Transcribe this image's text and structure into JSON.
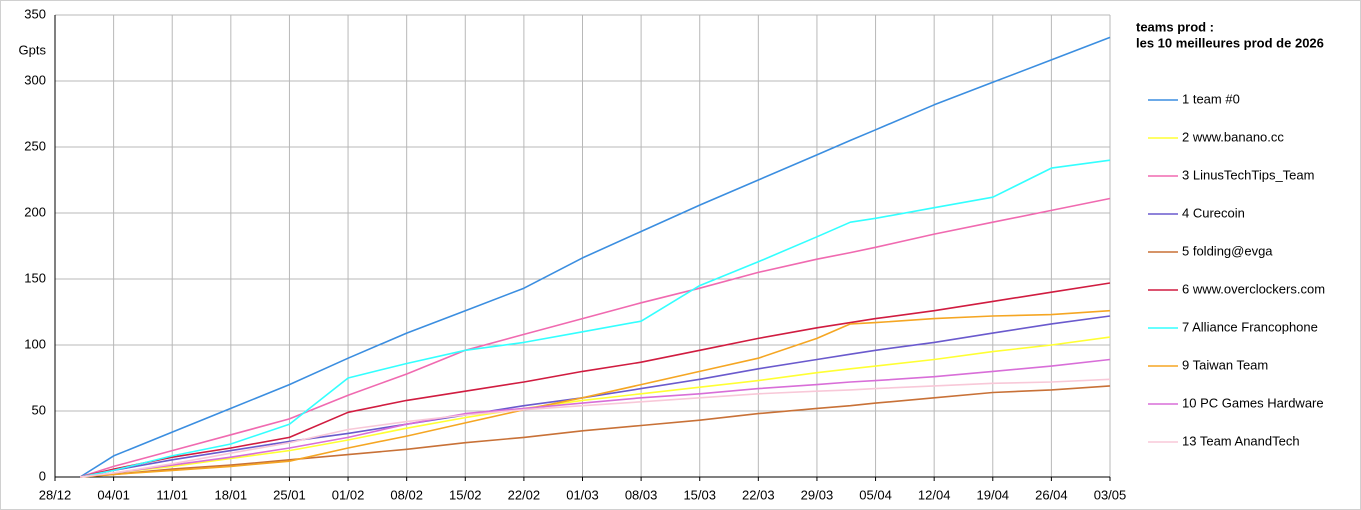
{
  "chart_data": {
    "type": "line",
    "title": "teams prod :",
    "subtitle": "les 10 meilleures prod de 2026",
    "y_label": "Gpts",
    "x": [
      3,
      7,
      14,
      21,
      28,
      35,
      42,
      49,
      56,
      63,
      70,
      77,
      84,
      91,
      95,
      98,
      105,
      112,
      119,
      126
    ],
    "xlim": [
      0,
      126
    ],
    "xticks": [
      {
        "value": 0,
        "label": "28/12"
      },
      {
        "value": 7,
        "label": "04/01"
      },
      {
        "value": 14,
        "label": "11/01"
      },
      {
        "value": 21,
        "label": "18/01"
      },
      {
        "value": 28,
        "label": "25/01"
      },
      {
        "value": 35,
        "label": "01/02"
      },
      {
        "value": 42,
        "label": "08/02"
      },
      {
        "value": 49,
        "label": "15/02"
      },
      {
        "value": 56,
        "label": "22/02"
      },
      {
        "value": 63,
        "label": "01/03"
      },
      {
        "value": 70,
        "label": "08/03"
      },
      {
        "value": 77,
        "label": "15/03"
      },
      {
        "value": 84,
        "label": "22/03"
      },
      {
        "value": 91,
        "label": "29/03"
      },
      {
        "value": 98,
        "label": "05/04"
      },
      {
        "value": 105,
        "label": "12/04"
      },
      {
        "value": 112,
        "label": "19/04"
      },
      {
        "value": 119,
        "label": "26/04"
      },
      {
        "value": 126,
        "label": "03/05"
      }
    ],
    "ylim": [
      0,
      350
    ],
    "yticks": [
      0,
      50,
      100,
      150,
      200,
      250,
      300,
      350
    ],
    "grid": true,
    "legend": "right",
    "series": [
      {
        "name": "1 team #0",
        "color": "#3b8ee0",
        "values": [
          0,
          16,
          34,
          52,
          70,
          90,
          109,
          126,
          143,
          166,
          186,
          206,
          225,
          244,
          255,
          263,
          282,
          299,
          316,
          333
        ]
      },
      {
        "name": "2 www.banano.cc",
        "color": "#ffff33",
        "values": [
          0,
          3,
          8,
          14,
          20,
          28,
          37,
          45,
          52,
          58,
          63,
          68,
          73,
          79,
          82,
          84,
          89,
          95,
          100,
          106
        ]
      },
      {
        "name": "3 LinusTechTips_Team",
        "color": "#f06ab0",
        "values": [
          0,
          8,
          20,
          32,
          44,
          62,
          78,
          96,
          108,
          120,
          132,
          143,
          155,
          165,
          170,
          174,
          184,
          193,
          202,
          211
        ]
      },
      {
        "name": "4 Curecoin",
        "color": "#6a5acd",
        "values": [
          0,
          5,
          13,
          20,
          27,
          33,
          40,
          47,
          54,
          60,
          67,
          74,
          82,
          89,
          93,
          96,
          102,
          109,
          116,
          122
        ]
      },
      {
        "name": "5 folding@evga",
        "color": "#c87137",
        "values": [
          0,
          2,
          6,
          9,
          13,
          17,
          21,
          26,
          30,
          35,
          39,
          43,
          48,
          52,
          54,
          56,
          60,
          64,
          66,
          69
        ]
      },
      {
        "name": "6 www.overclockers.com",
        "color": "#d01c40",
        "values": [
          0,
          6,
          15,
          22,
          30,
          49,
          58,
          65,
          72,
          80,
          87,
          96,
          105,
          113,
          117,
          120,
          126,
          133,
          140,
          147
        ]
      },
      {
        "name": "7 Alliance Francophone",
        "color": "#33ffff",
        "values": [
          0,
          5,
          16,
          25,
          40,
          75,
          86,
          96,
          102,
          110,
          118,
          145,
          163,
          182,
          193,
          196,
          204,
          212,
          234,
          240
        ]
      },
      {
        "name": "9 Taiwan Team",
        "color": "#f5a623",
        "values": [
          0,
          2,
          5,
          8,
          12,
          22,
          31,
          41,
          51,
          60,
          70,
          80,
          90,
          105,
          116,
          117,
          120,
          122,
          123,
          126
        ]
      },
      {
        "name": "10 PC Games Hardware",
        "color": "#d86ed8",
        "values": [
          0,
          3,
          9,
          15,
          22,
          30,
          40,
          48,
          52,
          56,
          60,
          63,
          67,
          70,
          72,
          73,
          76,
          80,
          84,
          89
        ]
      },
      {
        "name": "13 Team AnandTech",
        "color": "#f8c8d8",
        "values": [
          0,
          3,
          10,
          18,
          26,
          36,
          42,
          47,
          51,
          54,
          57,
          60,
          63,
          65,
          66,
          67,
          69,
          71,
          72,
          74
        ]
      }
    ]
  }
}
